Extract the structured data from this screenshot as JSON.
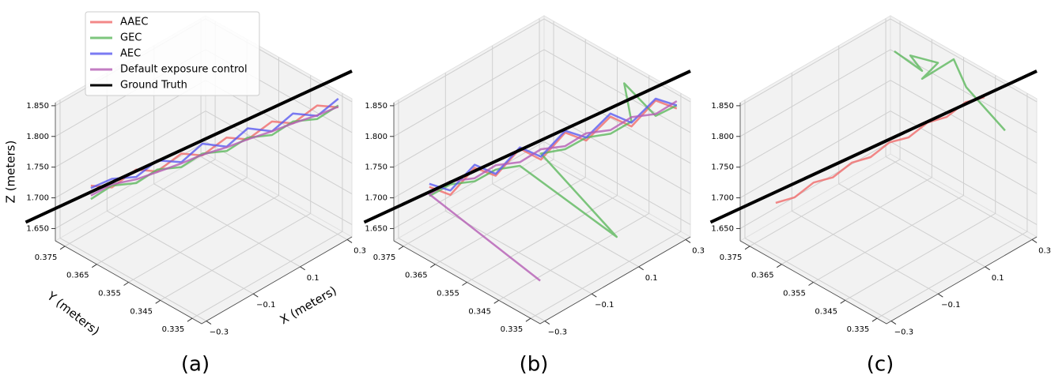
{
  "chart_data": [
    {
      "type": "line3d",
      "label": "(a)",
      "xlabel": "X (meters)",
      "ylabel": "Y (meters)",
      "zlabel": "Z (meters)",
      "legend": "upper left",
      "xlim": [
        -0.32,
        0.32
      ],
      "ylim": [
        0.332,
        0.378
      ],
      "zlim": [
        1.63,
        1.855
      ],
      "xticks": [
        {
          "value": -0.3,
          "label": "−0.3"
        },
        {
          "value": -0.1,
          "label": "−0.1"
        },
        0.1,
        0.3
      ],
      "yticks": [
        0.375,
        0.365,
        0.355,
        0.345,
        0.335
      ],
      "zticks": [
        {
          "value": 1.65,
          "label": "1.650"
        },
        {
          "value": 1.7,
          "label": "1.700"
        },
        {
          "value": 1.75,
          "label": "1.750"
        },
        {
          "value": 1.8,
          "label": "1.800"
        },
        {
          "value": 1.85,
          "label": "1.850"
        }
      ],
      "series": [
        {
          "name": "AAEC",
          "color": "#f06a6a",
          "x": [
            -0.25,
            -0.201,
            -0.152,
            -0.103,
            -0.054,
            -0.005,
            0.044,
            0.093,
            0.142,
            0.191,
            0.24,
            0.289
          ],
          "y": [
            0.372,
            0.369,
            0.365,
            0.362,
            0.358,
            0.355,
            0.351,
            0.348,
            0.344,
            0.341,
            0.337,
            0.334
          ],
          "z": [
            1.722,
            1.717,
            1.747,
            1.742,
            1.772,
            1.767,
            1.797,
            1.792,
            1.822,
            1.817,
            1.847,
            1.842
          ]
        },
        {
          "name": "GEC",
          "color": "#5cb85c",
          "x": [
            -0.25,
            -0.201,
            -0.152,
            -0.103,
            -0.054,
            -0.005,
            0.044,
            0.093,
            0.142,
            0.191,
            0.24,
            0.289
          ],
          "y": [
            0.372,
            0.369,
            0.365,
            0.362,
            0.358,
            0.355,
            0.351,
            0.348,
            0.344,
            0.341,
            0.337,
            0.334
          ],
          "z": [
            1.7,
            1.72,
            1.725,
            1.745,
            1.75,
            1.77,
            1.775,
            1.795,
            1.8,
            1.82,
            1.825,
            1.845
          ]
        },
        {
          "name": "AEC",
          "color": "#5a5af0",
          "x": [
            -0.25,
            -0.201,
            -0.152,
            -0.103,
            -0.054,
            -0.005,
            0.044,
            0.093,
            0.142,
            0.191,
            0.24,
            0.289
          ],
          "y": [
            0.372,
            0.369,
            0.365,
            0.362,
            0.358,
            0.355,
            0.351,
            0.348,
            0.344,
            0.341,
            0.337,
            0.334
          ],
          "z": [
            1.718,
            1.731,
            1.735,
            1.76,
            1.758,
            1.786,
            1.782,
            1.81,
            1.806,
            1.833,
            1.83,
            1.856
          ]
        },
        {
          "name": "Default exposure control",
          "color": "#b45cb4",
          "x": [
            -0.25,
            -0.201,
            -0.152,
            -0.103,
            -0.054,
            -0.005,
            0.044,
            0.093,
            0.142,
            0.191,
            0.24,
            0.289
          ],
          "y": [
            0.372,
            0.369,
            0.365,
            0.362,
            0.358,
            0.355,
            0.351,
            0.348,
            0.344,
            0.341,
            0.337,
            0.334
          ],
          "z": [
            1.706,
            1.722,
            1.731,
            1.741,
            1.756,
            1.768,
            1.781,
            1.792,
            1.806,
            1.817,
            1.831,
            1.843
          ]
        },
        {
          "name": "Ground Truth",
          "color": "#000000",
          "x": [
            -0.384,
            0.32
          ],
          "y": [
            0.3826,
            0.332
          ],
          "z": [
            1.661,
            1.9
          ]
        }
      ]
    },
    {
      "type": "line3d",
      "label": "(b)",
      "xlim": [
        -0.32,
        0.32
      ],
      "ylim": [
        0.332,
        0.378
      ],
      "zlim": [
        1.63,
        1.855
      ],
      "xticks": [
        {
          "value": -0.3,
          "label": "−0.3"
        },
        {
          "value": -0.1,
          "label": "−0.1"
        },
        0.1,
        0.3
      ],
      "yticks": [
        0.375,
        0.365,
        0.355,
        0.345,
        0.335
      ],
      "zticks": [
        {
          "value": 1.65,
          "label": "1.650"
        },
        {
          "value": 1.7,
          "label": "1.700"
        },
        {
          "value": 1.75,
          "label": "1.750"
        },
        {
          "value": 1.8,
          "label": "1.800"
        },
        {
          "value": 1.85,
          "label": "1.850"
        }
      ],
      "series": [
        {
          "color": "#f06a6a",
          "x": [
            -0.25,
            -0.201,
            -0.152,
            -0.103,
            -0.054,
            -0.005,
            0.044,
            0.093,
            0.142,
            0.191,
            0.24,
            0.289
          ],
          "y": [
            0.372,
            0.369,
            0.365,
            0.362,
            0.358,
            0.355,
            0.351,
            0.348,
            0.344,
            0.341,
            0.337,
            0.334
          ],
          "z": [
            1.72,
            1.705,
            1.75,
            1.735,
            1.78,
            1.76,
            1.805,
            1.79,
            1.83,
            1.812,
            1.855,
            1.84
          ]
        },
        {
          "color": "#5cb85c",
          "x": [
            -0.25,
            -0.201,
            -0.152,
            -0.103,
            -0.054,
            0.128,
            -0.005,
            0.044,
            0.093,
            0.142,
            0.191,
            0.16,
            0.24,
            0.289
          ],
          "y": [
            0.372,
            0.369,
            0.365,
            0.362,
            0.358,
            0.341,
            0.355,
            0.351,
            0.348,
            0.344,
            0.341,
            0.341,
            0.337,
            0.334
          ],
          "z": [
            1.705,
            1.722,
            1.728,
            1.745,
            1.752,
            1.646,
            1.77,
            1.778,
            1.795,
            1.802,
            1.82,
            1.889,
            1.83,
            1.845
          ]
        },
        {
          "color": "#5a5af0",
          "x": [
            -0.25,
            -0.201,
            -0.152,
            -0.103,
            -0.054,
            -0.005,
            0.044,
            0.093,
            0.142,
            0.191,
            0.24,
            0.289
          ],
          "y": [
            0.372,
            0.369,
            0.365,
            0.362,
            0.358,
            0.355,
            0.351,
            0.348,
            0.344,
            0.341,
            0.337,
            0.334
          ],
          "z": [
            1.725,
            1.712,
            1.755,
            1.738,
            1.782,
            1.765,
            1.808,
            1.795,
            1.835,
            1.818,
            1.858,
            1.845
          ]
        },
        {
          "color": "#b45cb4",
          "x": [
            -0.13,
            -0.25,
            -0.201,
            -0.152,
            -0.103,
            -0.054,
            -0.005,
            0.044,
            0.093,
            0.142,
            0.191,
            0.24,
            0.289
          ],
          "y": [
            0.346,
            0.372,
            0.369,
            0.365,
            0.362,
            0.358,
            0.355,
            0.351,
            0.348,
            0.344,
            0.341,
            0.337,
            0.334
          ],
          "z": [
            1.617,
            1.708,
            1.727,
            1.733,
            1.752,
            1.758,
            1.777,
            1.783,
            1.802,
            1.808,
            1.827,
            1.833,
            1.852
          ]
        },
        {
          "color": "#000000",
          "x": [
            -0.384,
            0.32
          ],
          "y": [
            0.3826,
            0.332
          ],
          "z": [
            1.661,
            1.9
          ]
        }
      ]
    },
    {
      "type": "line3d",
      "label": "(c)",
      "xlim": [
        -0.32,
        0.32
      ],
      "ylim": [
        0.332,
        0.378
      ],
      "zlim": [
        1.63,
        1.855
      ],
      "xticks": [
        {
          "value": -0.3,
          "label": "−0.3"
        },
        {
          "value": -0.1,
          "label": "−0.1"
        },
        0.1,
        0.3
      ],
      "yticks": [
        0.375,
        0.365,
        0.355,
        0.345,
        0.335
      ],
      "zticks": [
        {
          "value": 1.65,
          "label": "1.650"
        },
        {
          "value": 1.7,
          "label": "1.700"
        },
        {
          "value": 1.75,
          "label": "1.750"
        },
        {
          "value": 1.8,
          "label": "1.800"
        },
        {
          "value": 1.85,
          "label": "1.850"
        }
      ],
      "series": [
        {
          "color": "#f06a6a",
          "x": [
            -0.25,
            -0.21,
            -0.17,
            -0.129,
            -0.089,
            -0.049,
            -0.009,
            0.031,
            0.072,
            0.112,
            0.152,
            0.192
          ],
          "y": [
            0.372,
            0.369,
            0.366,
            0.363,
            0.36,
            0.357,
            0.354,
            0.351,
            0.348,
            0.345,
            0.342,
            0.339
          ],
          "z": [
            1.694,
            1.703,
            1.727,
            1.735,
            1.759,
            1.768,
            1.792,
            1.8,
            1.824,
            1.833,
            1.857,
            1.865
          ]
        },
        {
          "color": "#5cb85c",
          "x": [
            0.025,
            0.143,
            0.093,
            0.211,
            0.143,
            0.278,
            0.141,
            0.185
          ],
          "y": [
            0.355,
            0.355,
            0.355,
            0.355,
            0.355,
            0.355,
            0.341,
            0.332
          ],
          "z": [
            1.93,
            1.872,
            1.908,
            1.87,
            1.859,
            1.861,
            1.887,
            1.833
          ]
        },
        {
          "color": "#000000",
          "x": [
            -0.384,
            0.32
          ],
          "y": [
            0.3826,
            0.332
          ],
          "z": [
            1.661,
            1.9
          ]
        }
      ]
    }
  ]
}
